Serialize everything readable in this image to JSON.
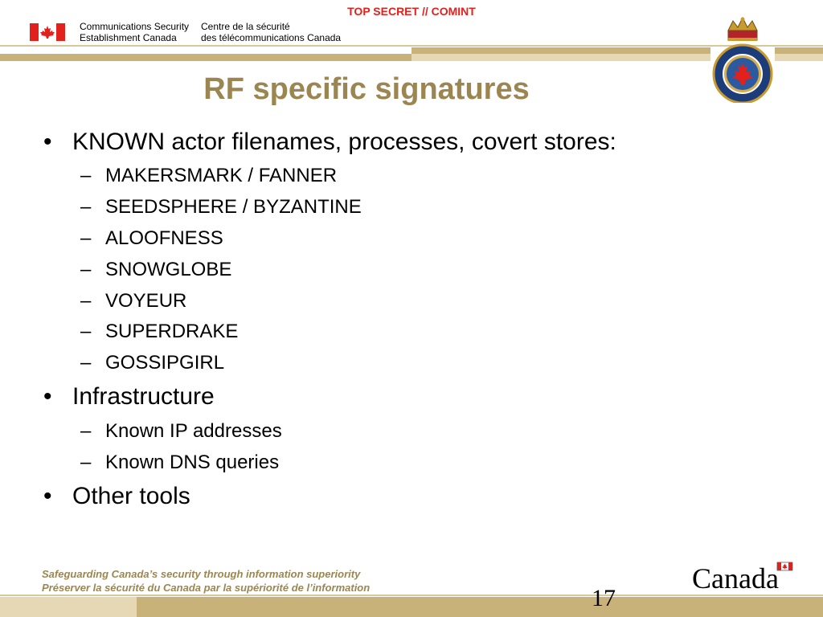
{
  "header": {
    "classification": "TOP SECRET // COMINT",
    "dept_en": [
      "Communications Security",
      "Establishment Canada"
    ],
    "dept_fr": [
      "Centre de la sécurité",
      "des télécommunications Canada"
    ],
    "flag_icon": "canada-flag-icon",
    "seal_icon": "cse-crest-icon",
    "accent_color": "#9b8652",
    "band_color": "#c8b27a",
    "classification_color": "#e2211c"
  },
  "slide": {
    "title": "RF specific signatures",
    "bullets": [
      {
        "text": "KNOWN actor filenames, processes, covert stores:",
        "sub": [
          "MAKERSMARK / FANNER",
          "SEEDSPHERE / BYZANTINE",
          "ALOOFNESS",
          "SNOWGLOBE",
          "VOYEUR",
          "SUPERDRAKE",
          "GOSSIPGIRL"
        ]
      },
      {
        "text": "Infrastructure",
        "sub": [
          "Known IP addresses",
          "Known DNS queries"
        ]
      },
      {
        "text": "Other tools",
        "sub": []
      }
    ]
  },
  "footer": {
    "motto_en": "Safeguarding Canada’s security through information superiority",
    "motto_fr": "Préserver la sécurité du Canada par la supériorité de l’information",
    "wordmark": "Canada",
    "page_number": "17"
  }
}
